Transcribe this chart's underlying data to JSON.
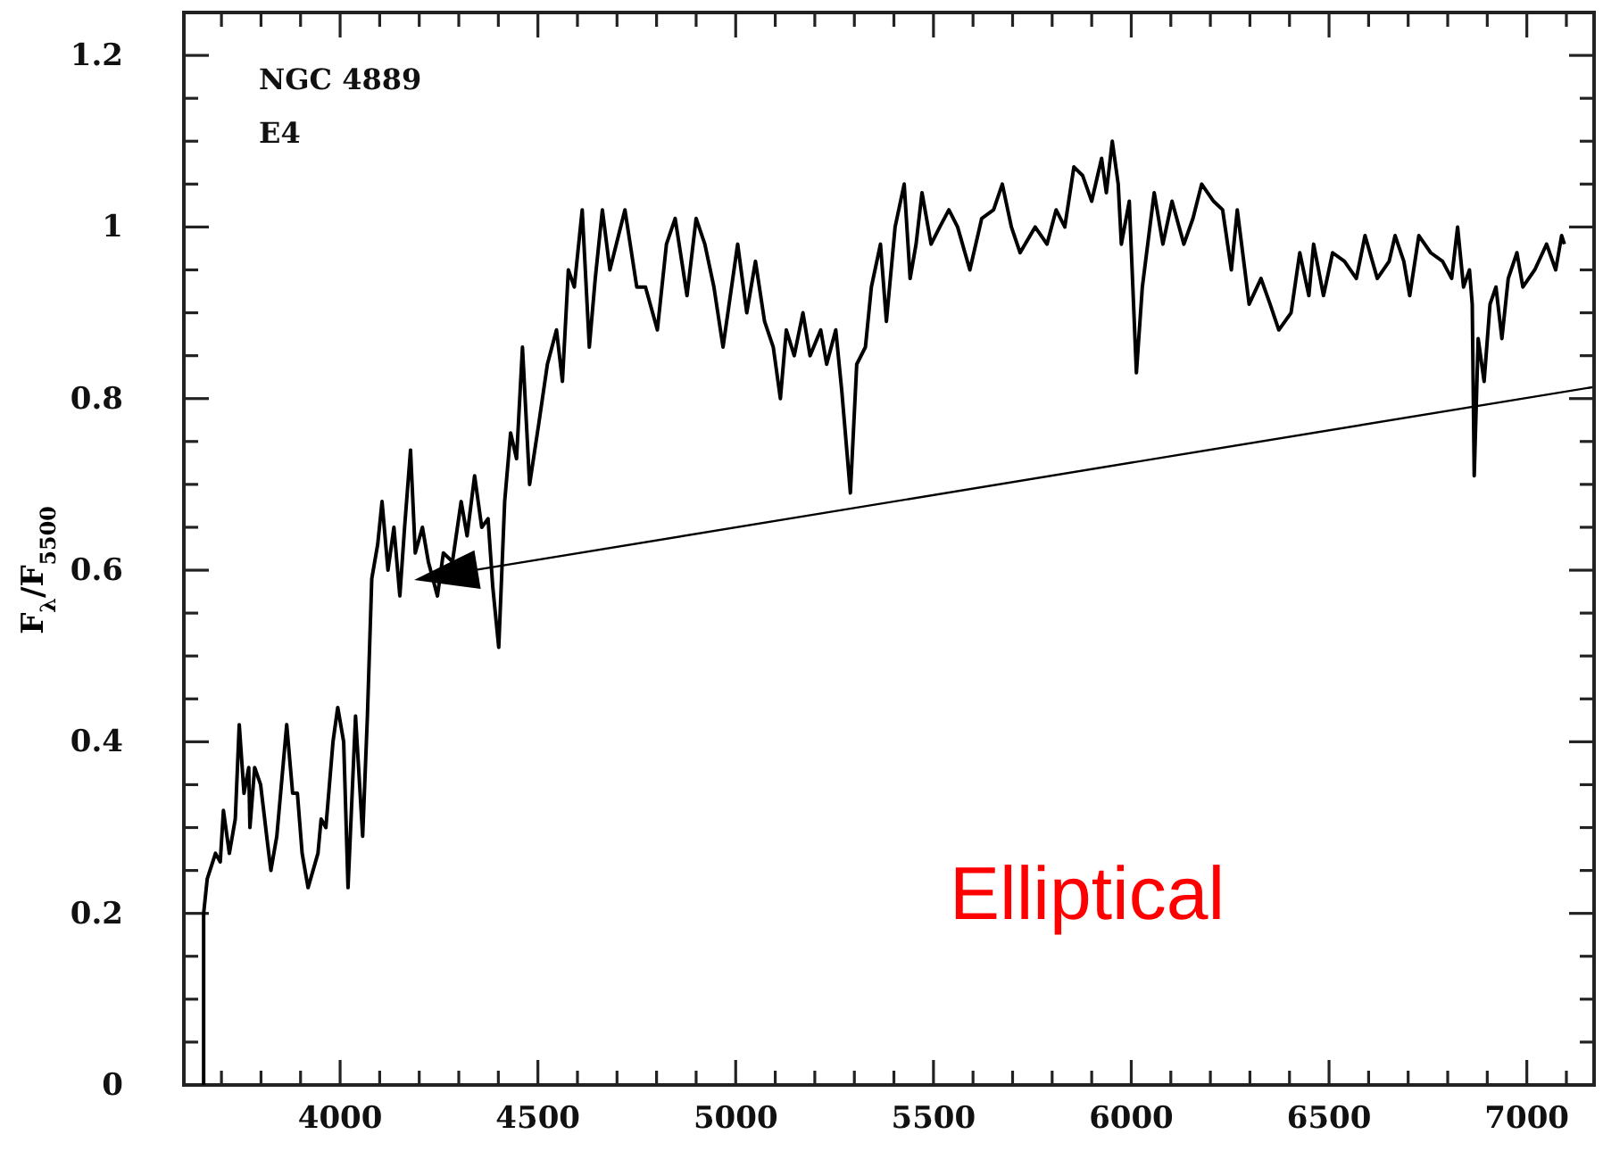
{
  "chart_data": {
    "type": "line",
    "ylabel": "F$_{λ}$/F$_{5500}$",
    "annotations": [
      "NGC 4889",
      "E4",
      "Elliptical"
    ],
    "xlim": [
      3605,
      7170
    ],
    "ylim": [
      0,
      1.25
    ],
    "xticks": [
      {
        "value": 3700,
        "label": null
      },
      {
        "value": 3800,
        "label": null
      },
      {
        "value": 3900,
        "label": null
      },
      4000,
      {
        "value": 4100,
        "label": null
      },
      {
        "value": 4200,
        "label": null
      },
      {
        "value": 4300,
        "label": null
      },
      {
        "value": 4400,
        "label": null
      },
      4500,
      {
        "value": 4600,
        "label": null
      },
      {
        "value": 4700,
        "label": null
      },
      {
        "value": 4800,
        "label": null
      },
      {
        "value": 4900,
        "label": null
      },
      5000,
      {
        "value": 5100,
        "label": null
      },
      {
        "value": 5200,
        "label": null
      },
      {
        "value": 5300,
        "label": null
      },
      {
        "value": 5400,
        "label": null
      },
      5500,
      {
        "value": 5600,
        "label": null
      },
      {
        "value": 5700,
        "label": null
      },
      {
        "value": 5800,
        "label": null
      },
      {
        "value": 5900,
        "label": null
      },
      6000,
      {
        "value": 6100,
        "label": null
      },
      {
        "value": 6200,
        "label": null
      },
      {
        "value": 6300,
        "label": null
      },
      {
        "value": 6400,
        "label": null
      },
      6500,
      {
        "value": 6600,
        "label": null
      },
      {
        "value": 6700,
        "label": null
      },
      {
        "value": 6800,
        "label": null
      },
      {
        "value": 6900,
        "label": null
      },
      7000,
      {
        "value": 7100,
        "label": null
      }
    ],
    "yticks": [
      0,
      {
        "value": 0.05,
        "label": null
      },
      {
        "value": 0.1,
        "label": null
      },
      {
        "value": 0.15,
        "label": null
      },
      0.2,
      {
        "value": 0.25,
        "label": null
      },
      {
        "value": 0.3,
        "label": null
      },
      {
        "value": 0.35,
        "label": null
      },
      0.4,
      {
        "value": 0.45,
        "label": null
      },
      {
        "value": 0.5,
        "label": null
      },
      {
        "value": 0.55,
        "label": null
      },
      0.6,
      {
        "value": 0.65,
        "label": null
      },
      {
        "value": 0.7,
        "label": null
      },
      {
        "value": 0.75,
        "label": null
      },
      0.8,
      {
        "value": 0.85,
        "label": null
      },
      {
        "value": 0.9,
        "label": null
      },
      {
        "value": 0.95,
        "label": null
      },
      1,
      {
        "value": 1.05,
        "label": null
      },
      {
        "value": 1.1,
        "label": null
      },
      {
        "value": 1.15,
        "label": null
      },
      1.2
    ],
    "series": [
      {
        "color": "#000000",
        "x": [
          3655,
          3655,
          3664,
          3685,
          3697,
          3705,
          3720,
          3735,
          3745,
          3757,
          3769,
          3772,
          3784,
          3799,
          3817,
          3825,
          3840,
          3865,
          3880,
          3892,
          3904,
          3919,
          3944,
          3952,
          3964,
          3982,
          3994,
          4009,
          4020,
          4039,
          4057,
          4069,
          4080,
          4095,
          4106,
          4121,
          4136,
          4151,
          4163,
          4178,
          4190,
          4208,
          4223,
          4246,
          4261,
          4284,
          4306,
          4321,
          4340,
          4358,
          4374,
          4386,
          4401,
          4416,
          4431,
          4446,
          4461,
          4479,
          4502,
          4524,
          4547,
          4562,
          4577,
          4592,
          4612,
          4630,
          4645,
          4663,
          4682,
          4720,
          4750,
          4772,
          4802,
          4825,
          4847,
          4877,
          4900,
          4922,
          4945,
          4968,
          5005,
          5028,
          5050,
          5073,
          5095,
          5113,
          5128,
          5148,
          5170,
          5188,
          5215,
          5230,
          5253,
          5268,
          5290,
          5306,
          5328,
          5343,
          5366,
          5381,
          5403,
          5426,
          5441,
          5456,
          5471,
          5494,
          5516,
          5539,
          5561,
          5592,
          5622,
          5652,
          5674,
          5697,
          5719,
          5757,
          5787,
          5810,
          5832,
          5855,
          5877,
          5900,
          5925,
          5937,
          5952,
          5967,
          5975,
          5995,
          6013,
          6028,
          6058,
          6080,
          6103,
          6133,
          6156,
          6178,
          6208,
          6231,
          6253,
          6268,
          6298,
          6328,
          6351,
          6373,
          6404,
          6426,
          6449,
          6461,
          6486,
          6509,
          6539,
          6569,
          6591,
          6622,
          6652,
          6667,
          6689,
          6704,
          6727,
          6757,
          6787,
          6810,
          6825,
          6840,
          6855,
          6862,
          6867,
          6877,
          6892,
          6907,
          6922,
          6937,
          6953,
          6975,
          6990,
          7020,
          7050,
          7073,
          7088,
          7095
        ],
        "values": [
          0,
          0.2,
          0.24,
          0.27,
          0.26,
          0.32,
          0.27,
          0.31,
          0.42,
          0.34,
          0.37,
          0.3,
          0.37,
          0.35,
          0.28,
          0.25,
          0.29,
          0.42,
          0.34,
          0.34,
          0.27,
          0.23,
          0.27,
          0.31,
          0.3,
          0.4,
          0.44,
          0.4,
          0.23,
          0.43,
          0.29,
          0.43,
          0.59,
          0.63,
          0.68,
          0.6,
          0.65,
          0.57,
          0.65,
          0.74,
          0.62,
          0.65,
          0.61,
          0.57,
          0.62,
          0.61,
          0.68,
          0.64,
          0.71,
          0.65,
          0.66,
          0.58,
          0.51,
          0.68,
          0.76,
          0.73,
          0.86,
          0.7,
          0.77,
          0.84,
          0.88,
          0.82,
          0.95,
          0.93,
          1.02,
          0.86,
          0.94,
          1.02,
          0.95,
          1.02,
          0.93,
          0.93,
          0.88,
          0.98,
          1.01,
          0.92,
          1.01,
          0.98,
          0.93,
          0.86,
          0.98,
          0.9,
          0.96,
          0.89,
          0.86,
          0.8,
          0.88,
          0.85,
          0.9,
          0.85,
          0.88,
          0.84,
          0.88,
          0.81,
          0.69,
          0.84,
          0.86,
          0.93,
          0.98,
          0.89,
          1,
          1.05,
          0.94,
          0.98,
          1.04,
          0.98,
          1,
          1.02,
          1,
          0.95,
          1.01,
          1.02,
          1.05,
          1,
          0.97,
          1,
          0.98,
          1.02,
          1,
          1.07,
          1.06,
          1.03,
          1.08,
          1.04,
          1.1,
          1.05,
          0.98,
          1.03,
          0.83,
          0.93,
          1.04,
          0.98,
          1.03,
          0.98,
          1.01,
          1.05,
          1.03,
          1.02,
          0.95,
          1.02,
          0.91,
          0.94,
          0.91,
          0.88,
          0.9,
          0.97,
          0.92,
          0.98,
          0.92,
          0.97,
          0.96,
          0.94,
          0.99,
          0.94,
          0.96,
          0.99,
          0.96,
          0.92,
          0.99,
          0.97,
          0.96,
          0.94,
          1,
          0.93,
          0.95,
          0.91,
          0.71,
          0.87,
          0.82,
          0.91,
          0.93,
          0.87,
          0.94,
          0.97,
          0.93,
          0.95,
          0.98,
          0.95,
          0.99,
          0.98
        ]
      }
    ]
  }
}
